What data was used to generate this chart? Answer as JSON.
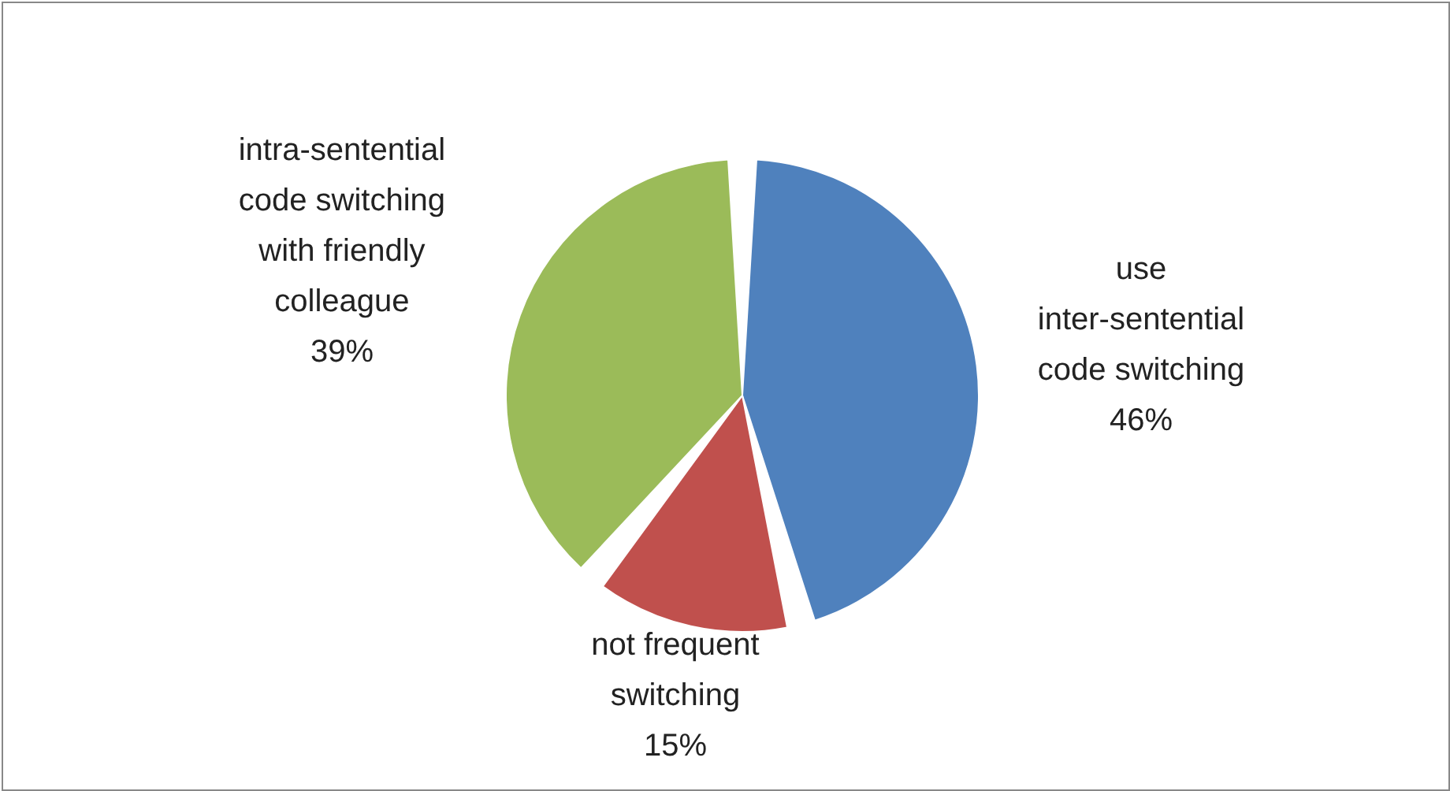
{
  "chart_data": {
    "type": "pie",
    "categories": [
      "use inter-sentential code switching",
      "not frequent switching",
      "intra-sentential code switching with friendly colleague"
    ],
    "values": [
      46,
      15,
      39
    ],
    "value_labels": [
      "46%",
      "15%",
      "39%"
    ],
    "colors": [
      "#4f81bd",
      "#c0504d",
      "#9bbb59"
    ]
  }
}
